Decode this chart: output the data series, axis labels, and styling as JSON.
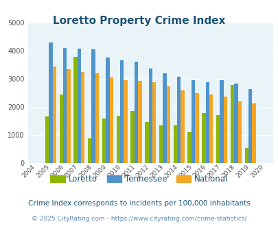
{
  "title": "Loretto Property Crime Index",
  "years": [
    2004,
    2005,
    2006,
    2007,
    2008,
    2009,
    2010,
    2011,
    2012,
    2013,
    2014,
    2015,
    2016,
    2017,
    2018,
    2019,
    2020
  ],
  "loretto": [
    0,
    1650,
    2430,
    3780,
    870,
    1580,
    1680,
    1840,
    1450,
    1330,
    1340,
    1100,
    1780,
    1690,
    2770,
    530,
    0
  ],
  "tennessee": [
    0,
    4300,
    4090,
    4070,
    4040,
    3760,
    3650,
    3600,
    3360,
    3180,
    3060,
    2940,
    2880,
    2940,
    2830,
    2620,
    0
  ],
  "national": [
    0,
    3440,
    3330,
    3230,
    3200,
    3040,
    2940,
    2930,
    2880,
    2720,
    2590,
    2480,
    2440,
    2360,
    2200,
    2110,
    0
  ],
  "loretto_color": "#8db600",
  "tennessee_color": "#4f94cd",
  "national_color": "#f5a623",
  "ylim": [
    0,
    5000
  ],
  "yticks": [
    0,
    1000,
    2000,
    3000,
    4000,
    5000
  ],
  "legend_labels": [
    "Loretto",
    "Tennessee",
    "National"
  ],
  "footnote1": "Crime Index corresponds to incidents per 100,000 inhabitants",
  "footnote2": "© 2025 CityRating.com - https://www.cityrating.com/crime-statistics/",
  "bg_color": "#e8f4f8",
  "title_color": "#1a5276",
  "footnote1_color": "#1a5276",
  "footnote2_color": "#5b8db8",
  "bar_width": 0.26
}
